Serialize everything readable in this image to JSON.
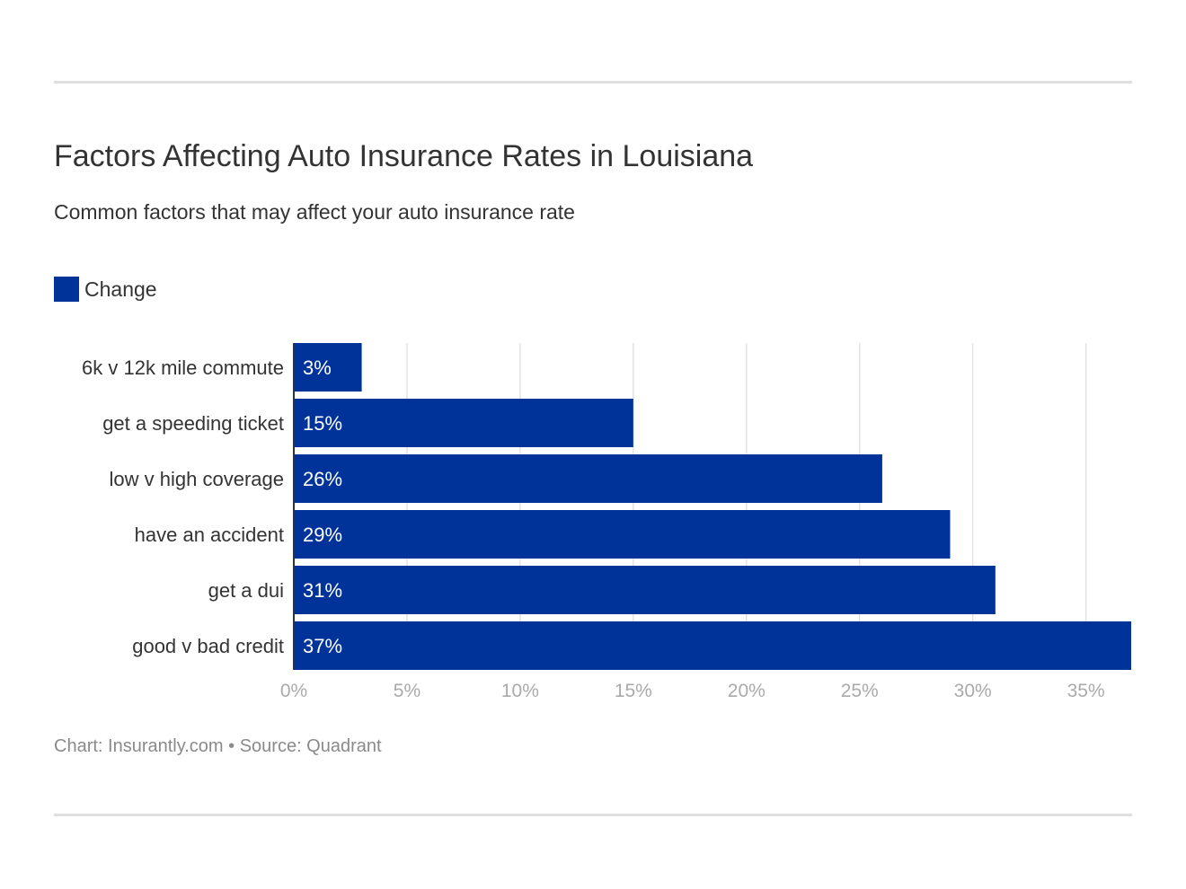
{
  "chart_data": {
    "type": "bar",
    "orientation": "horizontal",
    "title": "Factors Affecting Auto Insurance Rates in Louisiana",
    "subtitle": "Common factors that may affect your auto insurance rate",
    "categories": [
      "6k v 12k mile commute",
      "get a speeding ticket",
      "low v high coverage",
      "have an accident",
      "get a dui",
      "good v bad credit"
    ],
    "series": [
      {
        "name": "Change",
        "values": [
          3,
          15,
          26,
          29,
          31,
          37
        ],
        "labels": [
          "3%",
          "15%",
          "26%",
          "29%",
          "31%",
          "37%"
        ]
      }
    ],
    "xlim": [
      0,
      37
    ],
    "xticks": [
      0,
      5,
      10,
      15,
      20,
      25,
      30,
      35
    ],
    "xtick_labels": [
      "0%",
      "5%",
      "10%",
      "15%",
      "20%",
      "25%",
      "30%",
      "35%"
    ],
    "grid": true,
    "legend": "top-left",
    "color": "#003399"
  },
  "footer": "Chart: Insurantly.com • Source: Quadrant"
}
